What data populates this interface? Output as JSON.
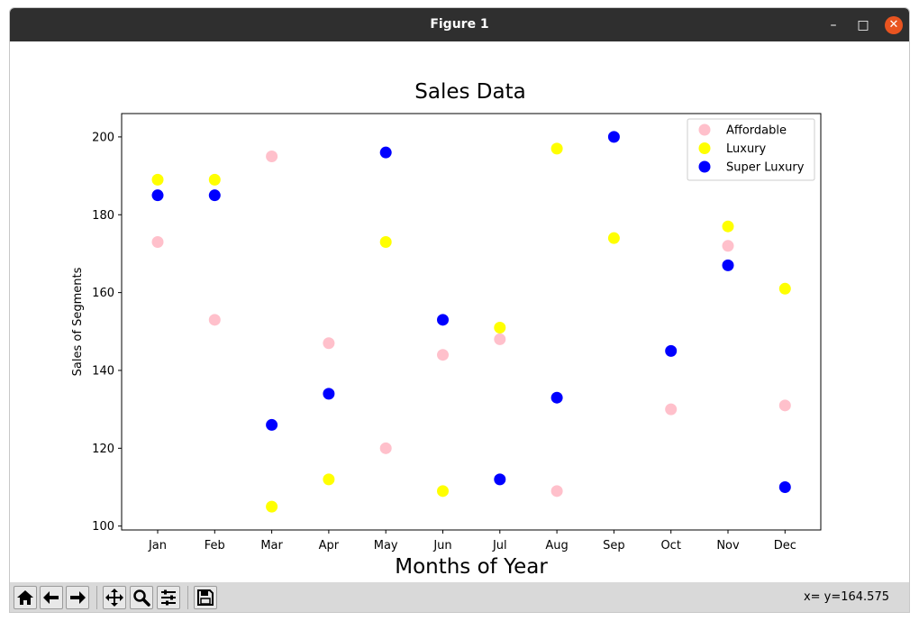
{
  "window": {
    "title": "Figure 1",
    "controls": {
      "minimize": "–",
      "maximize": "□",
      "close": "✕"
    }
  },
  "toolbar": {
    "buttons": [
      "home-icon",
      "back-icon",
      "forward-icon",
      "pan-icon",
      "zoom-icon",
      "configure-subplots-icon",
      "save-icon"
    ],
    "coords": "x= y=164.575"
  },
  "chart_data": {
    "type": "scatter",
    "title": "Sales Data",
    "xlabel": "Months of Year",
    "ylabel": "Sales of Segments",
    "categories": [
      "Jan",
      "Feb",
      "Mar",
      "Apr",
      "May",
      "Jun",
      "Jul",
      "Aug",
      "Sep",
      "Oct",
      "Nov",
      "Dec"
    ],
    "ylim": [
      99,
      206
    ],
    "yticks": [
      100,
      120,
      140,
      160,
      180,
      200
    ],
    "grid": false,
    "legend_position": "top-right",
    "series": [
      {
        "name": "Affordable",
        "color": "#ffc0cb",
        "values": [
          173,
          153,
          195,
          147,
          120,
          144,
          148,
          109,
          null,
          130,
          172,
          131
        ]
      },
      {
        "name": "Luxury",
        "color": "#ffff00",
        "values": [
          189,
          189,
          105,
          112,
          173,
          109,
          151,
          197,
          174,
          null,
          177,
          161
        ]
      },
      {
        "name": "Super Luxury",
        "color": "#0000ff",
        "values": [
          185,
          185,
          126,
          134,
          196,
          153,
          112,
          133,
          200,
          145,
          167,
          110
        ]
      }
    ]
  }
}
